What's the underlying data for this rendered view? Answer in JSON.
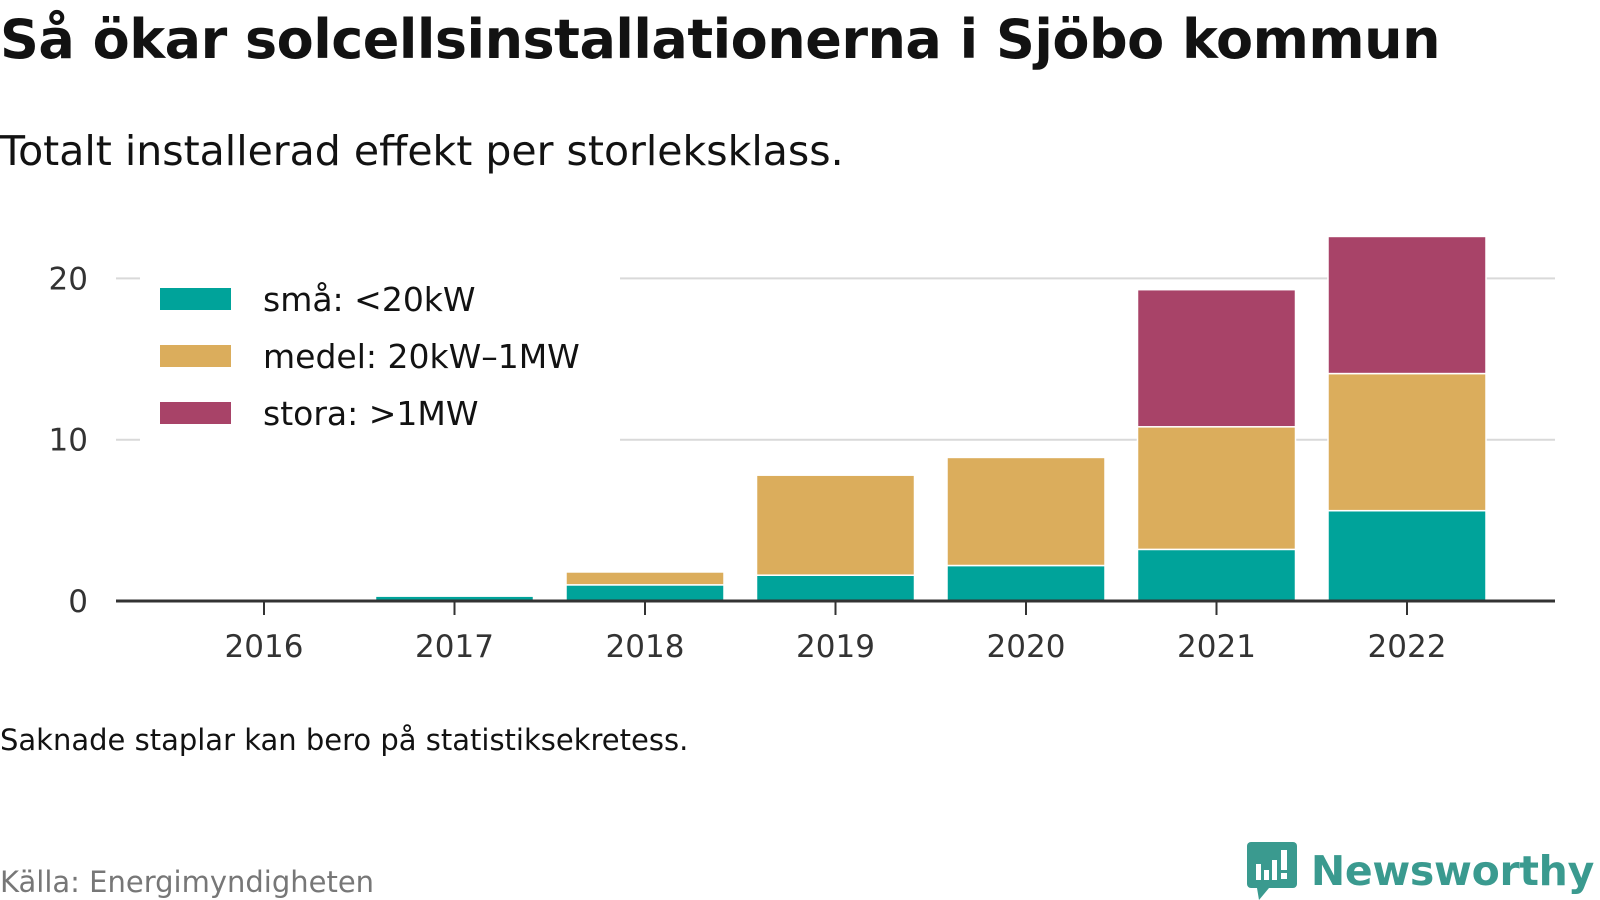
{
  "header": {
    "title": "Så ökar solcellsinstallationerna i Sjöbo kommun",
    "subtitle": "Totalt installerad effekt per storleksklass."
  },
  "footer": {
    "note": "Saknade staplar kan bero på statistiksekretess.",
    "source": "Källa: Energimyndigheten",
    "brand": "Newsworthy",
    "brand_icon": "newsworthy-logo-icon"
  },
  "colors": {
    "sma": "#00a39a",
    "medel": "#dbad5c",
    "stora": "#a84368",
    "grid": "#d9d9d9",
    "axis": "#333333",
    "brand": "#3a9a8f"
  },
  "chart_data": {
    "type": "bar",
    "stacked": true,
    "categories": [
      "2016",
      "2017",
      "2018",
      "2019",
      "2020",
      "2021",
      "2022"
    ],
    "series": [
      {
        "name": "små: <20kW",
        "color": "#00a39a",
        "values": [
          0,
          0.3,
          1.0,
          1.6,
          2.2,
          3.2,
          5.6
        ]
      },
      {
        "name": "medel: 20kW–1MW",
        "color": "#dbad5c",
        "values": [
          0,
          0,
          0.8,
          6.2,
          6.7,
          7.6,
          8.5
        ]
      },
      {
        "name": "stora: >1MW",
        "color": "#a84368",
        "values": [
          0,
          0,
          0,
          0,
          0,
          8.5,
          8.5
        ]
      }
    ],
    "yticks": [
      0,
      10,
      20
    ],
    "ylim": [
      0,
      23
    ],
    "grid": true,
    "legend": "top-left"
  }
}
